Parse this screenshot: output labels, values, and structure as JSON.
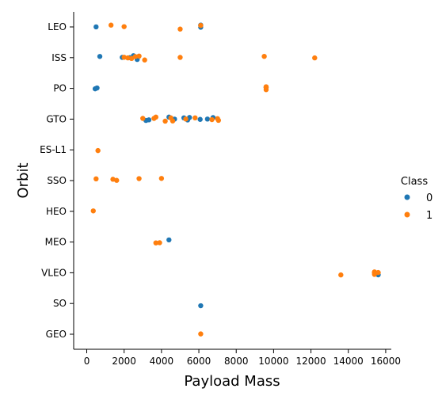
{
  "chart_data": {
    "type": "scatter",
    "xlabel": "Payload Mass",
    "ylabel": "Orbit",
    "xlim": [
      -700,
      16300
    ],
    "x_ticks": [
      0,
      2000,
      4000,
      6000,
      8000,
      10000,
      12000,
      14000,
      16000
    ],
    "categories": [
      "LEO",
      "ISS",
      "PO",
      "GTO",
      "ES-L1",
      "SSO",
      "HEO",
      "MEO",
      "VLEO",
      "SO",
      "GEO"
    ],
    "legend": {
      "title": "Class",
      "placement": "right",
      "entries": [
        {
          "label": "0",
          "color": "#1f77b4"
        },
        {
          "label": "1",
          "color": "#ff7f0e"
        }
      ]
    },
    "series": [
      {
        "name": "0",
        "color": "#1f77b4",
        "points": [
          {
            "x": 500,
            "y": "LEO"
          },
          {
            "x": 6100,
            "y": "LEO"
          },
          {
            "x": 6100,
            "y": "LEO"
          },
          {
            "x": 700,
            "y": "ISS"
          },
          {
            "x": 1900,
            "y": "ISS"
          },
          {
            "x": 2300,
            "y": "ISS"
          },
          {
            "x": 2500,
            "y": "ISS"
          },
          {
            "x": 2700,
            "y": "ISS"
          },
          {
            "x": 450,
            "y": "PO"
          },
          {
            "x": 550,
            "y": "PO"
          },
          {
            "x": 9600,
            "y": "PO"
          },
          {
            "x": 3170,
            "y": "GTO"
          },
          {
            "x": 3325,
            "y": "GTO"
          },
          {
            "x": 4400,
            "y": "GTO"
          },
          {
            "x": 4700,
            "y": "GTO"
          },
          {
            "x": 5200,
            "y": "GTO"
          },
          {
            "x": 5400,
            "y": "GTO"
          },
          {
            "x": 5500,
            "y": "GTO"
          },
          {
            "x": 6070,
            "y": "GTO"
          },
          {
            "x": 6460,
            "y": "GTO"
          },
          {
            "x": 6760,
            "y": "GTO"
          },
          {
            "x": 4400,
            "y": "MEO"
          },
          {
            "x": 15600,
            "y": "VLEO"
          },
          {
            "x": 6100,
            "y": "SO"
          }
        ]
      },
      {
        "name": "1",
        "color": "#ff7f0e",
        "points": [
          {
            "x": 1300,
            "y": "LEO"
          },
          {
            "x": 2000,
            "y": "LEO"
          },
          {
            "x": 5000,
            "y": "LEO"
          },
          {
            "x": 6100,
            "y": "LEO"
          },
          {
            "x": 2000,
            "y": "ISS"
          },
          {
            "x": 2200,
            "y": "ISS"
          },
          {
            "x": 2400,
            "y": "ISS"
          },
          {
            "x": 2600,
            "y": "ISS"
          },
          {
            "x": 2800,
            "y": "ISS"
          },
          {
            "x": 3100,
            "y": "ISS"
          },
          {
            "x": 5000,
            "y": "ISS"
          },
          {
            "x": 9500,
            "y": "ISS"
          },
          {
            "x": 12200,
            "y": "ISS"
          },
          {
            "x": 9600,
            "y": "PO"
          },
          {
            "x": 9600,
            "y": "PO"
          },
          {
            "x": 9600,
            "y": "PO"
          },
          {
            "x": 3000,
            "y": "GTO"
          },
          {
            "x": 3600,
            "y": "GTO"
          },
          {
            "x": 3700,
            "y": "GTO"
          },
          {
            "x": 4200,
            "y": "GTO"
          },
          {
            "x": 4500,
            "y": "GTO"
          },
          {
            "x": 4600,
            "y": "GTO"
          },
          {
            "x": 5300,
            "y": "GTO"
          },
          {
            "x": 5800,
            "y": "GTO"
          },
          {
            "x": 6700,
            "y": "GTO"
          },
          {
            "x": 7000,
            "y": "GTO"
          },
          {
            "x": 7050,
            "y": "GTO"
          },
          {
            "x": 600,
            "y": "ES-L1"
          },
          {
            "x": 500,
            "y": "SSO"
          },
          {
            "x": 1400,
            "y": "SSO"
          },
          {
            "x": 1600,
            "y": "SSO"
          },
          {
            "x": 2800,
            "y": "SSO"
          },
          {
            "x": 4000,
            "y": "SSO"
          },
          {
            "x": 350,
            "y": "HEO"
          },
          {
            "x": 3700,
            "y": "MEO"
          },
          {
            "x": 3900,
            "y": "MEO"
          },
          {
            "x": 13600,
            "y": "VLEO"
          },
          {
            "x": 15400,
            "y": "VLEO"
          },
          {
            "x": 15400,
            "y": "VLEO"
          },
          {
            "x": 15400,
            "y": "VLEO"
          },
          {
            "x": 15400,
            "y": "VLEO"
          },
          {
            "x": 15400,
            "y": "VLEO"
          },
          {
            "x": 15600,
            "y": "VLEO"
          },
          {
            "x": 6100,
            "y": "GEO"
          }
        ]
      }
    ]
  }
}
